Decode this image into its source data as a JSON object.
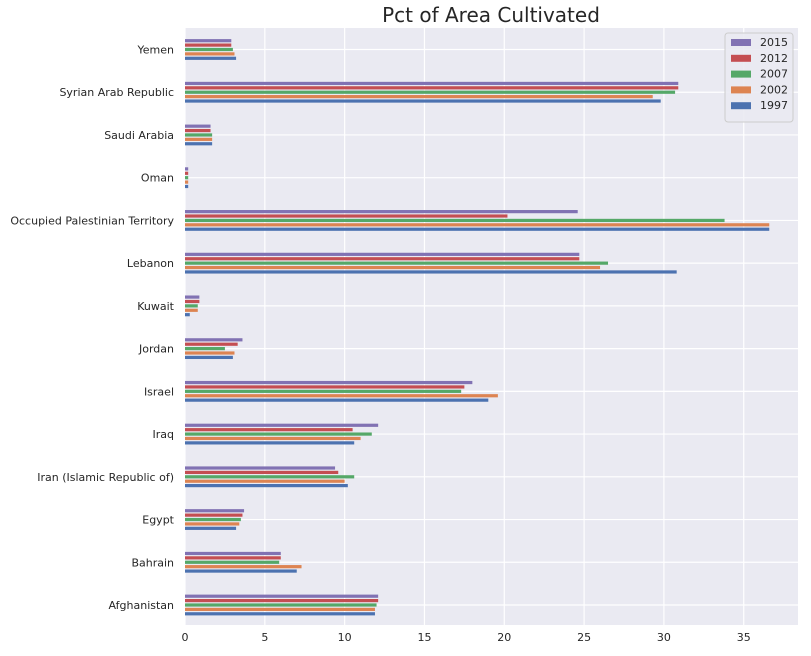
{
  "chart_data": {
    "type": "bar",
    "orientation": "horizontal",
    "title": "Pct of Area Cultivated",
    "xlabel": "",
    "ylabel": "",
    "xlim": [
      0,
      38.4
    ],
    "xticks": [
      0,
      5,
      10,
      15,
      20,
      25,
      30,
      35
    ],
    "grid": true,
    "legend_position": "top-right",
    "categories": [
      "Afghanistan",
      "Bahrain",
      "Egypt",
      "Iran (Islamic Republic of)",
      "Iraq",
      "Israel",
      "Jordan",
      "Kuwait",
      "Lebanon",
      "Occupied Palestinian Territory",
      "Oman",
      "Saudi Arabia",
      "Syrian Arab Republic",
      "Yemen"
    ],
    "series": [
      {
        "name": "1997",
        "color": "#4c72b0",
        "values": [
          11.9,
          7.0,
          3.2,
          10.2,
          10.6,
          19.0,
          3.0,
          0.3,
          30.8,
          36.6,
          0.2,
          1.7,
          29.8,
          3.2
        ]
      },
      {
        "name": "2002",
        "color": "#dd8452",
        "values": [
          11.9,
          7.3,
          3.4,
          10.0,
          11.0,
          19.6,
          3.1,
          0.8,
          26.0,
          36.6,
          0.2,
          1.7,
          29.3,
          3.1
        ]
      },
      {
        "name": "2007",
        "color": "#55a868",
        "values": [
          12.0,
          5.9,
          3.5,
          10.6,
          11.7,
          17.3,
          2.5,
          0.8,
          26.5,
          33.8,
          0.2,
          1.7,
          30.7,
          3.0
        ]
      },
      {
        "name": "2012",
        "color": "#c44e52",
        "values": [
          12.1,
          6.0,
          3.6,
          9.6,
          10.5,
          17.5,
          3.3,
          0.9,
          24.7,
          20.2,
          0.2,
          1.6,
          30.9,
          2.9
        ]
      },
      {
        "name": "2015",
        "color": "#8172b3",
        "values": [
          12.1,
          6.0,
          3.7,
          9.4,
          12.1,
          18.0,
          3.6,
          0.9,
          24.7,
          24.6,
          0.2,
          1.6,
          30.9,
          2.9
        ]
      }
    ]
  }
}
